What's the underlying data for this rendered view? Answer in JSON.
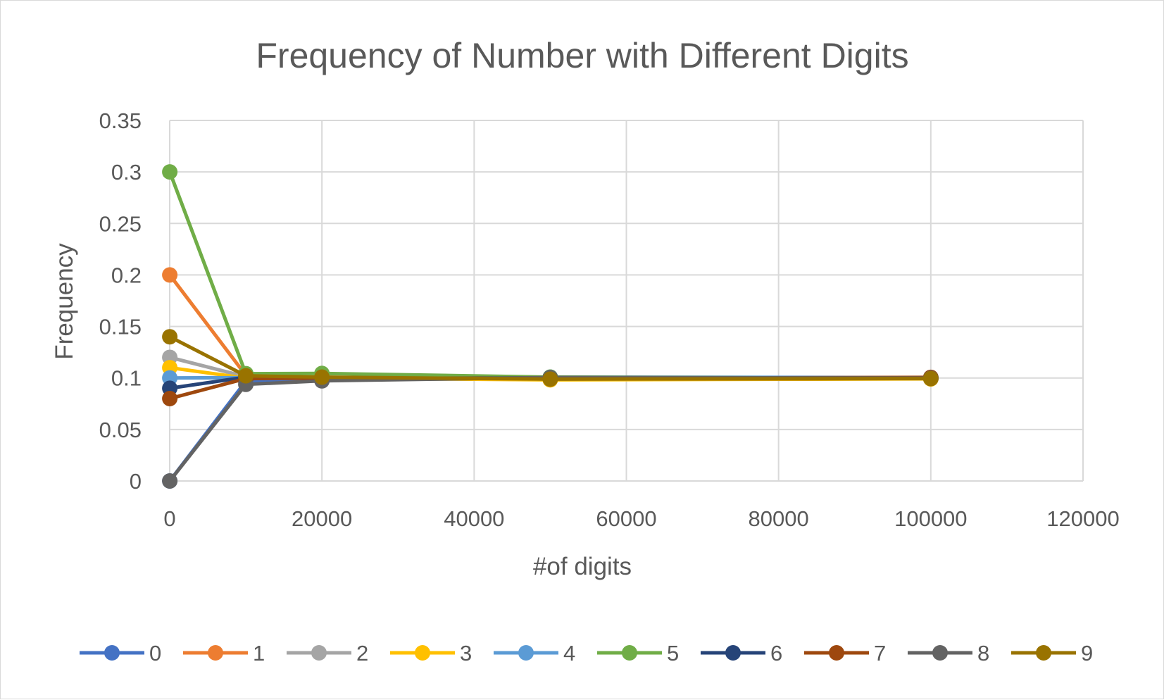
{
  "chart_data": {
    "type": "scatter",
    "title": "Frequency of Number with Different Digits",
    "xlabel": "#of digits",
    "ylabel": "Frequency",
    "xlim": [
      0,
      120000
    ],
    "ylim": [
      0,
      0.35
    ],
    "x_ticks": [
      "0",
      "20000",
      "40000",
      "60000",
      "80000",
      "100000",
      "120000"
    ],
    "y_ticks": [
      "0",
      "0.05",
      "0.1",
      "0.15",
      "0.2",
      "0.25",
      "0.3",
      "0.35"
    ],
    "grid": true,
    "legend_position": "bottom",
    "x": [
      10,
      10000,
      20000,
      50000,
      100000
    ],
    "series": [
      {
        "name": "0",
        "color": "#4472C4",
        "values": [
          0.0,
          0.0968,
          0.0985,
          0.0997,
          0.0998
        ]
      },
      {
        "name": "1",
        "color": "#ED7D31",
        "values": [
          0.2,
          0.1026,
          0.1001,
          0.0984,
          0.1005
        ]
      },
      {
        "name": "2",
        "color": "#A5A5A5",
        "values": [
          0.12,
          0.1012,
          0.0988,
          0.0993,
          0.0997
        ]
      },
      {
        "name": "3",
        "color": "#FFC000",
        "values": [
          0.11,
          0.0999,
          0.0999,
          0.0982,
          0.0991
        ]
      },
      {
        "name": "4",
        "color": "#5B9BD5",
        "values": [
          0.1,
          0.1003,
          0.1004,
          0.1008,
          0.1004
        ]
      },
      {
        "name": "5",
        "color": "#70AD47",
        "values": [
          0.3,
          0.1042,
          0.1044,
          0.1008,
          0.0997
        ]
      },
      {
        "name": "6",
        "color": "#264478",
        "values": [
          0.09,
          0.1008,
          0.0992,
          0.1001,
          0.0998
        ]
      },
      {
        "name": "7",
        "color": "#9E480E",
        "values": [
          0.08,
          0.0994,
          0.0998,
          0.0996,
          0.1006
        ]
      },
      {
        "name": "8",
        "color": "#636363",
        "values": [
          0.0,
          0.0938,
          0.0972,
          0.1005,
          0.0998
        ]
      },
      {
        "name": "9",
        "color": "#997300",
        "values": [
          0.14,
          0.1021,
          0.1008,
          0.0989,
          0.0994
        ]
      }
    ]
  }
}
